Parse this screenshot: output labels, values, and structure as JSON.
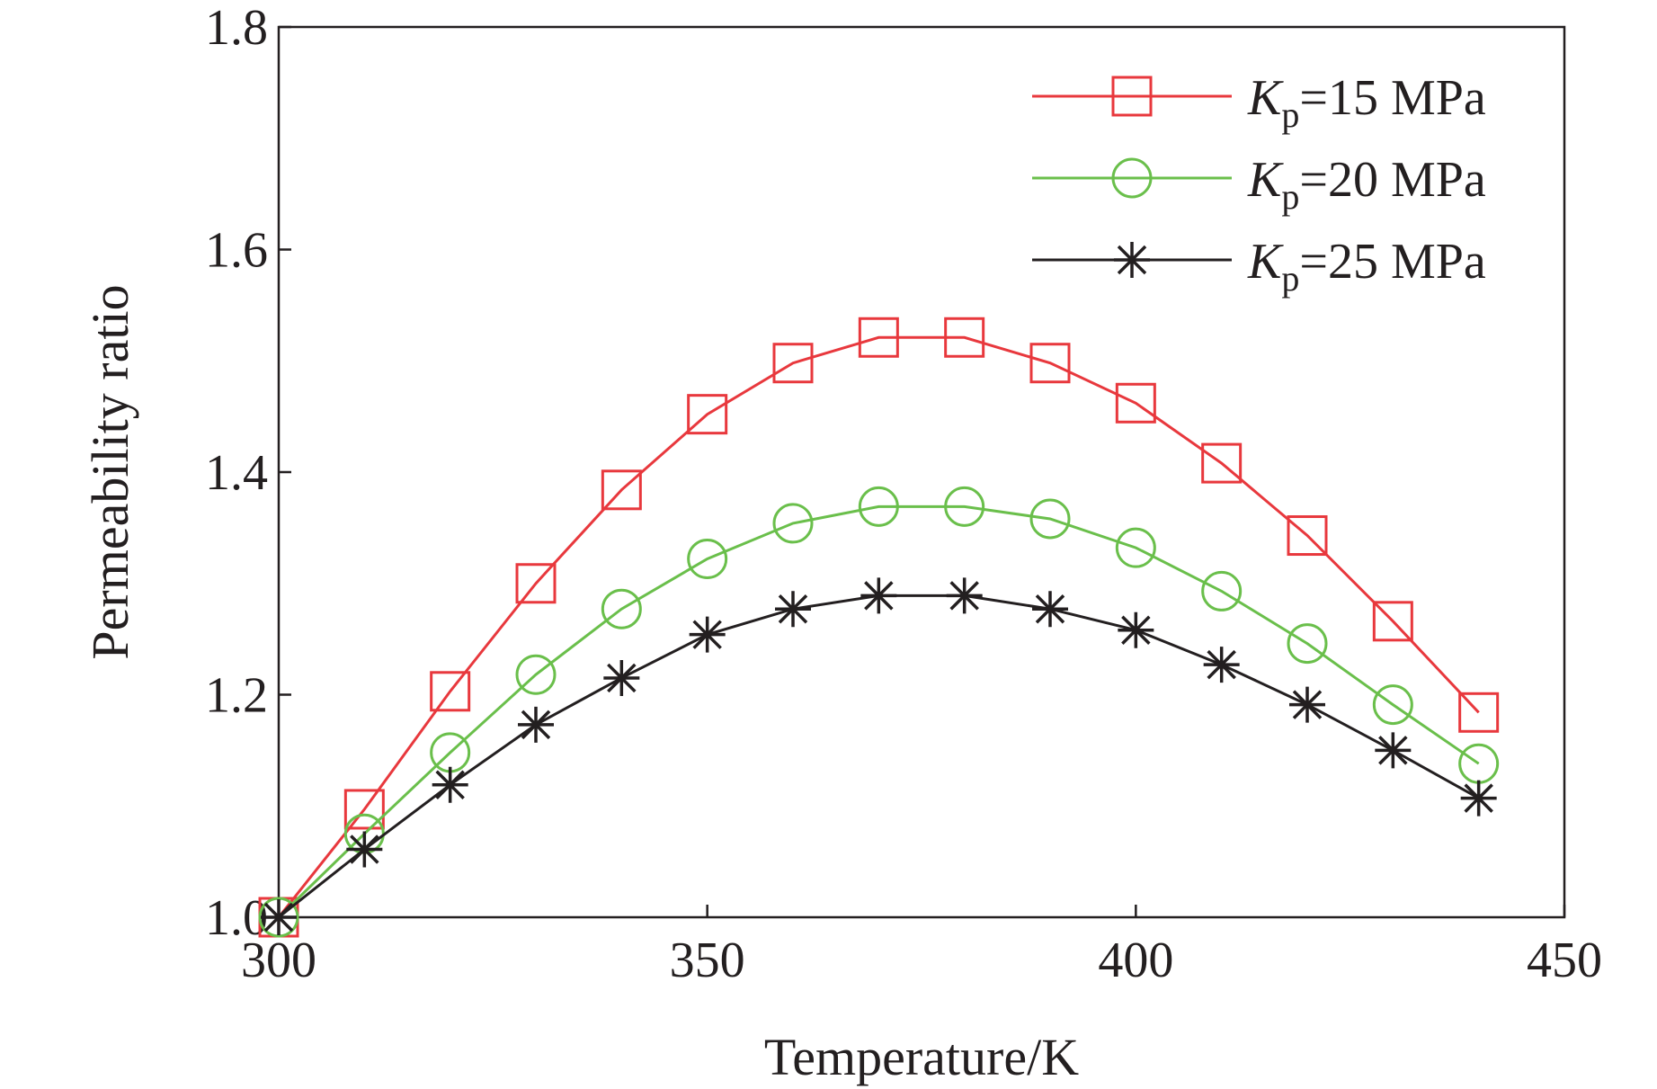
{
  "chart_data": {
    "type": "line",
    "title": "",
    "xlabel": "Temperature/K",
    "ylabel": "Permeability ratio",
    "xlim": [
      300,
      450
    ],
    "ylim": [
      1.0,
      1.8
    ],
    "xticks": [
      300,
      350,
      400,
      450
    ],
    "yticks": [
      1.0,
      1.2,
      1.4,
      1.6,
      1.8
    ],
    "xtick_labels": [
      "300",
      "350",
      "400",
      "450"
    ],
    "ytick_labels": [
      "1.0",
      "1.2",
      "1.4",
      "1.6",
      "1.8"
    ],
    "grid": false,
    "legend_position": "top-right",
    "x": [
      300,
      310,
      320,
      330,
      340,
      350,
      360,
      370,
      380,
      390,
      400,
      410,
      420,
      430,
      440
    ],
    "series": [
      {
        "name": "Kp=15 MPa",
        "legend_k": "K",
        "legend_sub": "p",
        "legend_rest": "=15 MPa",
        "color": "#e8383d",
        "marker": "square",
        "values": [
          1.0,
          1.097,
          1.203,
          1.3,
          1.384,
          1.452,
          1.498,
          1.521,
          1.521,
          1.498,
          1.462,
          1.408,
          1.343,
          1.266,
          1.184
        ]
      },
      {
        "name": "Kp=20 MPa",
        "legend_k": "K",
        "legend_sub": "p",
        "legend_rest": "=20 MPa",
        "color": "#6abf4b",
        "marker": "circle",
        "values": [
          1.0,
          1.075,
          1.148,
          1.218,
          1.277,
          1.322,
          1.354,
          1.369,
          1.369,
          1.358,
          1.332,
          1.293,
          1.246,
          1.191,
          1.138
        ]
      },
      {
        "name": "Kp=25 MPa",
        "legend_k": "K",
        "legend_sub": "p",
        "legend_rest": "=25 MPa",
        "color": "#231f20",
        "marker": "asterisk",
        "values": [
          1.0,
          1.061,
          1.119,
          1.173,
          1.215,
          1.254,
          1.277,
          1.289,
          1.289,
          1.277,
          1.258,
          1.227,
          1.191,
          1.15,
          1.107
        ]
      }
    ]
  }
}
